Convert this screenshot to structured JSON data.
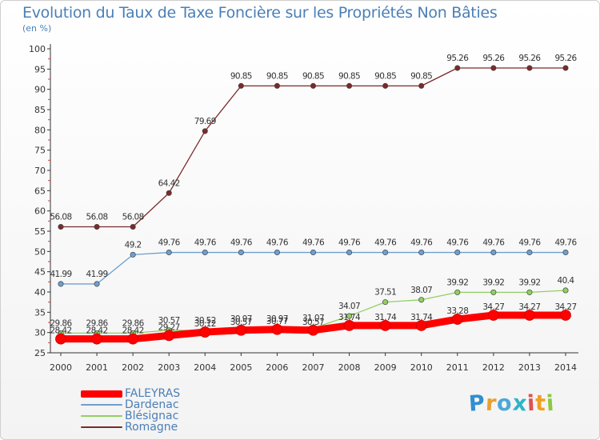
{
  "chart_data": {
    "type": "line",
    "title": "Evolution du Taux de Taxe Foncière sur les Propriétés Non Bâties",
    "ylabel": "(en %)",
    "xlabel": "",
    "x": [
      "2000",
      "2001",
      "2002",
      "2003",
      "2004",
      "2005",
      "2006",
      "2007",
      "2008",
      "2009",
      "2010",
      "2011",
      "2012",
      "2013",
      "2014"
    ],
    "ylim": [
      25,
      100
    ],
    "yticks": [
      25,
      30,
      35,
      40,
      45,
      50,
      55,
      60,
      65,
      70,
      75,
      80,
      85,
      90,
      95,
      100
    ],
    "grid": false,
    "legend_position": "bottom-left",
    "series": [
      {
        "name": "FALEYRAS",
        "color": "#ff0000",
        "values": [
          28.42,
          28.42,
          28.42,
          29.27,
          30.12,
          30.57,
          30.77,
          30.57,
          31.74,
          31.74,
          31.74,
          33.28,
          34.27,
          34.27,
          34.27
        ],
        "labels": [
          "28.42",
          "28.42",
          "28.42",
          "29.27",
          "30.12",
          "30.57",
          "30.77",
          "30.57",
          "31.74",
          "31.74",
          "31.74",
          "33.28",
          "34.27",
          "34.27",
          "34.27"
        ]
      },
      {
        "name": "Dardenac",
        "color": "#6f9fcf",
        "values": [
          41.99,
          41.99,
          49.2,
          49.76,
          49.76,
          49.76,
          49.76,
          49.76,
          49.76,
          49.76,
          49.76,
          49.76,
          49.76,
          49.76,
          49.76
        ],
        "labels": [
          "41.99",
          "41.99",
          "49.2",
          "49.76",
          "49.76",
          "49.76",
          "49.76",
          "49.76",
          "49.76",
          "49.76",
          "49.76",
          "49.76",
          "49.76",
          "49.76",
          "49.76"
        ]
      },
      {
        "name": "Blésignac",
        "color": "#90d060",
        "values": [
          29.86,
          29.86,
          29.86,
          30.57,
          30.52,
          30.97,
          30.97,
          31.07,
          34.07,
          37.51,
          38.07,
          39.92,
          39.92,
          39.92,
          40.4
        ],
        "labels": [
          "29.86",
          "29.86",
          "29.86",
          "30.57",
          "30.52",
          "30.97",
          "30.97",
          "31.07",
          "34.07",
          "37.51",
          "38.07",
          "39.92",
          "39.92",
          "39.92",
          "40.4"
        ]
      },
      {
        "name": "Romagne",
        "color": "#7a2a2a",
        "values": [
          56.08,
          56.08,
          56.08,
          64.42,
          79.69,
          90.85,
          90.85,
          90.85,
          90.85,
          90.85,
          90.85,
          95.26,
          95.26,
          95.26,
          95.26
        ],
        "labels": [
          "56.08",
          "56.08",
          "56.08",
          "64.42",
          "79.69",
          "90.85",
          "90.85",
          "90.85",
          "90.85",
          "90.85",
          "90.85",
          "95.26",
          "95.26",
          "95.26",
          "95.26"
        ]
      }
    ]
  },
  "logo": {
    "letters": [
      "P",
      "r",
      "o",
      "x",
      "i",
      "t",
      "i"
    ],
    "colors": [
      "#2f8fd0",
      "#e8a030",
      "#4aa8d8",
      "#2fb3c8",
      "#e05050",
      "#f0a020",
      "#8cc840"
    ]
  }
}
